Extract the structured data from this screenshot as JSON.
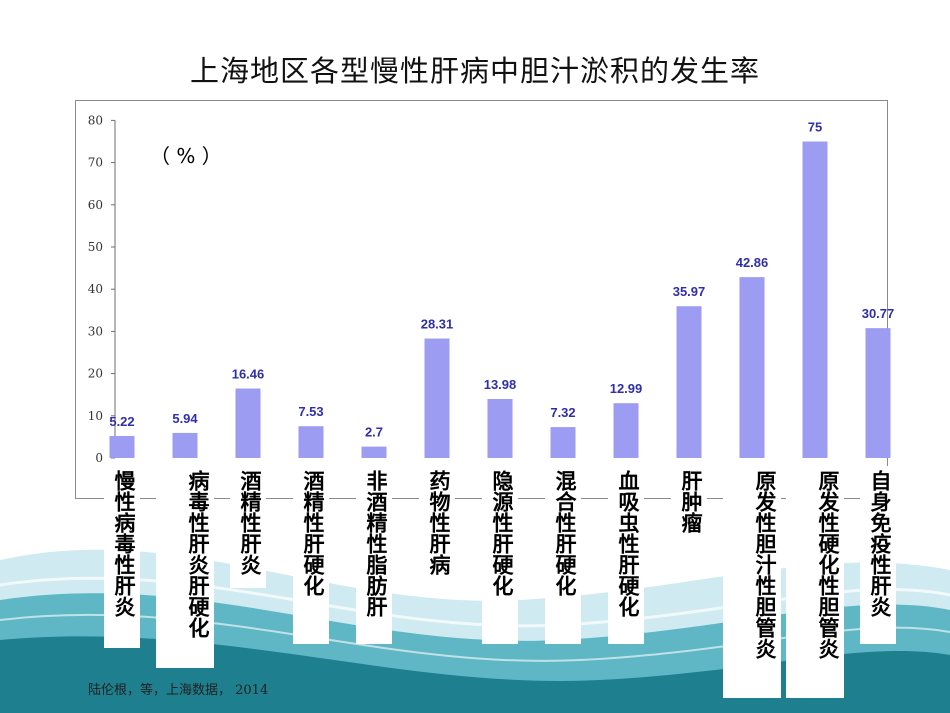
{
  "slide": {
    "title": "上海地区各型慢性肝病中胆汁淤积的发生率",
    "unit_label": "（ % ）",
    "source": "陆伦根，等，上海数据， 2014"
  },
  "colors": {
    "bar": "#9b9cf2",
    "value_label": "#2f2fa8",
    "deco_dark": "#1e7f8f",
    "deco_light": "#bfe4ea"
  },
  "chart_data": {
    "type": "bar",
    "title": "上海地区各型慢性肝病中胆汁淤积的发生率",
    "ylabel": "（ % ）",
    "ylim": [
      0,
      80
    ],
    "yticks": [
      0,
      10,
      20,
      30,
      40,
      50,
      60,
      70,
      80
    ],
    "grid": false,
    "categories": [
      "慢性病毒性肝炎",
      "病毒性肝炎肝硬化",
      "酒精性肝炎",
      "酒精性肝硬化",
      "非酒精性脂肪肝",
      "药物性肝病",
      "隐源性肝硬化",
      "混合性肝硬化",
      "血吸虫性肝硬化",
      "肝肿瘤",
      "原发性胆汁性胆管炎",
      "原发性硬化性胆管炎",
      "自身免疫性肝炎"
    ],
    "values": [
      5.22,
      5.94,
      16.46,
      7.53,
      2.7,
      28.31,
      13.98,
      7.32,
      12.99,
      35.97,
      42.86,
      75,
      30.77
    ],
    "value_labels": [
      "5.22",
      "5.94",
      "16.46",
      "7.53",
      "2.7",
      "28.31",
      "13.98",
      "7.32",
      "12.99",
      "35.97",
      "42.86",
      "75",
      "30.77"
    ]
  }
}
